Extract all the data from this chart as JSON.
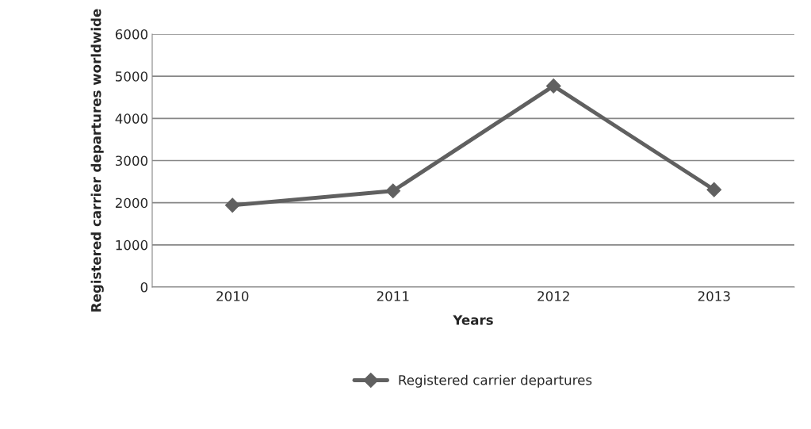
{
  "chart_data": {
    "type": "line",
    "xlabel": "Years",
    "ylabel": "Registered carrier departures worldwide",
    "categories": [
      "2010",
      "2011",
      "2012",
      "2013"
    ],
    "series": [
      {
        "name": "Registered carrier departures",
        "color": "#606060",
        "values": [
          1940,
          2280,
          4770,
          2310
        ]
      }
    ],
    "ylim": [
      0,
      6000
    ],
    "yticks": [
      0,
      1000,
      2000,
      3000,
      4000,
      5000,
      6000
    ],
    "grid": "y",
    "legend": "bottom",
    "marker": "diamond",
    "line_style": "solid"
  }
}
